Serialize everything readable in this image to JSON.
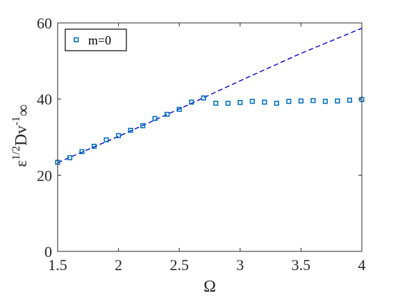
{
  "chart_data": {
    "type": "scatter",
    "xlabel": "Ω",
    "ylabel": {
      "base": "ε",
      "base_sup": "1/2",
      "main": "Dv",
      "main_sup": "-1",
      "main_sub": "∞"
    },
    "xlim": [
      1.5,
      4
    ],
    "ylim": [
      0,
      60
    ],
    "xticks": [
      1.5,
      2,
      2.5,
      3,
      3.5,
      4
    ],
    "xtick_labels": [
      "1.5",
      "2",
      "2.5",
      "3",
      "3.5",
      "4"
    ],
    "yticks": [
      0,
      20,
      40,
      60
    ],
    "ytick_labels": [
      "0",
      "20",
      "40",
      "60"
    ],
    "grid": false,
    "legend_position": "top-left",
    "series": [
      {
        "name": "m=0",
        "marker": "square",
        "color": "#0072BD",
        "x": [
          1.5,
          1.6,
          1.7,
          1.8,
          1.9,
          2.0,
          2.1,
          2.2,
          2.3,
          2.4,
          2.5,
          2.6,
          2.7,
          2.8,
          2.9,
          3.0,
          3.1,
          3.2,
          3.3,
          3.4,
          3.5,
          3.6,
          3.7,
          3.8,
          3.9,
          4.0
        ],
        "y": [
          23.4,
          24.6,
          26.2,
          27.6,
          29.3,
          30.4,
          31.8,
          33.0,
          34.9,
          36.0,
          37.3,
          39.2,
          40.3,
          38.9,
          38.9,
          39.1,
          39.4,
          39.2,
          38.9,
          39.4,
          39.5,
          39.6,
          39.4,
          39.5,
          39.7,
          39.9
        ]
      },
      {
        "name": "",
        "style": "dashed",
        "color": "#0000CC",
        "x": [
          1.5,
          2.0,
          2.5,
          3.0,
          3.5,
          4.0
        ],
        "y": [
          23.3,
          30.2,
          37.4,
          44.8,
          52.0,
          58.6
        ]
      }
    ]
  }
}
